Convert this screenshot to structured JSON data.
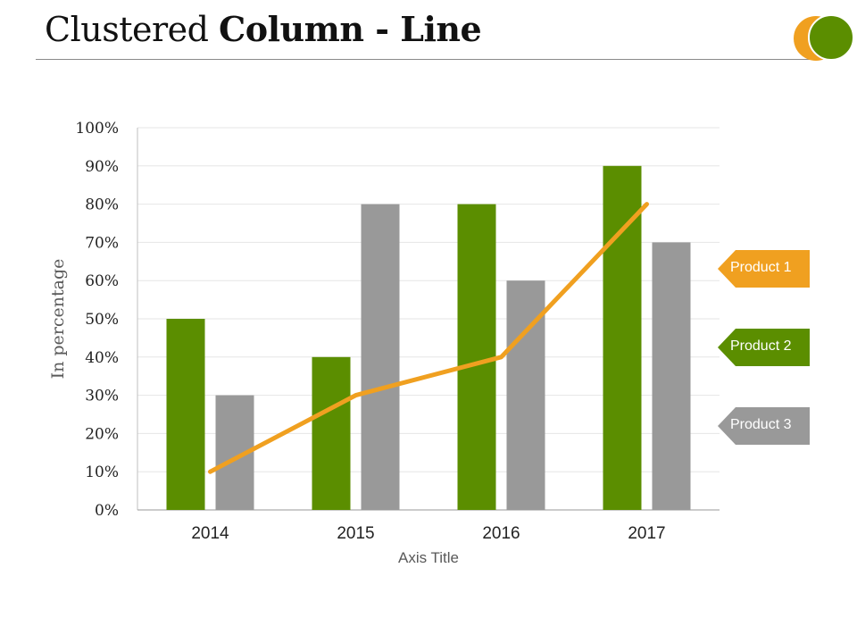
{
  "header": {
    "title_light": "Clustered ",
    "title_bold": "Column - Line",
    "deco_colors": [
      "#f0a020",
      "#5b8e00"
    ]
  },
  "chart_data": {
    "type": "bar",
    "combo": "clustered column with line",
    "categories": [
      "2014",
      "2015",
      "2016",
      "2017"
    ],
    "series": [
      {
        "name": "Product 2",
        "type": "bar",
        "color": "#5b8e00",
        "values": [
          50,
          40,
          80,
          90
        ]
      },
      {
        "name": "Product 3",
        "type": "bar",
        "color": "#999999",
        "values": [
          30,
          80,
          60,
          70
        ]
      },
      {
        "name": "Product 1",
        "type": "line",
        "color": "#f0a020",
        "values": [
          10,
          30,
          40,
          80
        ]
      }
    ],
    "ylabel": "In percentage",
    "xlabel": "Axis Title",
    "ylim": [
      0,
      100
    ],
    "yticks": [
      "0%",
      "10%",
      "20%",
      "30%",
      "40%",
      "50%",
      "60%",
      "70%",
      "80%",
      "90%",
      "100%"
    ],
    "grid": true,
    "legend": {
      "placement": "right",
      "items": [
        {
          "label": "Product 1",
          "color": "#f0a020"
        },
        {
          "label": "Product 2",
          "color": "#5b8e00"
        },
        {
          "label": "Product 3",
          "color": "#999999"
        }
      ]
    }
  }
}
